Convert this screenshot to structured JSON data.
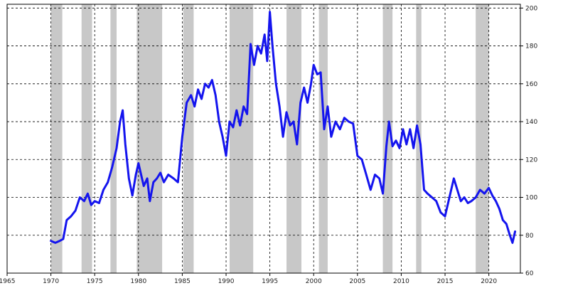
{
  "chart_data": {
    "type": "line",
    "xlim": [
      1965,
      2023.6
    ],
    "ylim": [
      60,
      202
    ],
    "x_ticks": [
      1965,
      1970,
      1975,
      1980,
      1985,
      1990,
      1995,
      2000,
      2005,
      2010,
      2015,
      2020
    ],
    "x_tick_labels": [
      "1965",
      "1970",
      "1975",
      "1980",
      "1985",
      "1990",
      "1995",
      "2000",
      "2005",
      "2010",
      "2015",
      "2020"
    ],
    "y_ticks": [
      60,
      80,
      100,
      120,
      140,
      160,
      180,
      200
    ],
    "y_tick_labels": [
      "60",
      "80",
      "100",
      "120",
      "140",
      "160",
      "180",
      "200"
    ],
    "y_axis_side": "right",
    "grid": true,
    "grid_style": "dashed",
    "line_color": "#1414ee",
    "shade_color": "#c8c8c8",
    "shaded_periods": [
      [
        1970.0,
        1971.3
      ],
      [
        1973.5,
        1974.7
      ],
      [
        1976.8,
        1977.5
      ],
      [
        1979.8,
        1982.7
      ],
      [
        1985.1,
        1986.3
      ],
      [
        1990.4,
        1993.1
      ],
      [
        1996.9,
        1998.6
      ],
      [
        2000.6,
        2001.6
      ],
      [
        2007.9,
        2009.0
      ],
      [
        2011.7,
        2012.3
      ],
      [
        2018.5,
        2020.0
      ]
    ],
    "series": [
      {
        "x": [
          1970.0,
          1970.5,
          1971.0,
          1971.4,
          1971.8,
          1972.3,
          1972.8,
          1973.3,
          1973.8,
          1974.2,
          1974.6,
          1975.0,
          1975.5,
          1976.0,
          1976.5,
          1977.0,
          1977.5,
          1977.9,
          1978.2,
          1978.5,
          1978.9,
          1979.3,
          1979.7,
          1980.0,
          1980.3,
          1980.6,
          1981.0,
          1981.3,
          1981.7,
          1982.1,
          1982.5,
          1982.9,
          1983.4,
          1984.0,
          1984.5,
          1985.0,
          1985.5,
          1986.0,
          1986.4,
          1986.8,
          1987.2,
          1987.6,
          1988.0,
          1988.4,
          1988.8,
          1989.2,
          1989.6,
          1990.0,
          1990.4,
          1990.8,
          1991.2,
          1991.6,
          1992.0,
          1992.4,
          1992.8,
          1993.2,
          1993.6,
          1994.0,
          1994.4,
          1994.7,
          1995.0,
          1995.3,
          1995.7,
          1996.1,
          1996.5,
          1996.9,
          1997.3,
          1997.7,
          1998.1,
          1998.5,
          1998.9,
          1999.3,
          1999.7,
          2000.0,
          2000.4,
          2000.8,
          2001.2,
          2001.6,
          2002.0,
          2002.5,
          2003.0,
          2003.5,
          2004.0,
          2004.5,
          2005.0,
          2005.5,
          2006.0,
          2006.5,
          2007.0,
          2007.5,
          2007.9,
          2008.3,
          2008.6,
          2009.0,
          2009.4,
          2009.8,
          2010.2,
          2010.6,
          2011.0,
          2011.4,
          2011.8,
          2012.2,
          2012.6,
          2013.0,
          2013.5,
          2014.0,
          2014.5,
          2015.0,
          2015.5,
          2016.0,
          2016.4,
          2016.8,
          2017.2,
          2017.6,
          2018.0,
          2018.5,
          2019.0,
          2019.5,
          2020.0,
          2020.4,
          2020.8,
          2021.2,
          2021.6,
          2022.0,
          2022.4,
          2022.7,
          2023.0
        ],
        "y": [
          77,
          76,
          77,
          78,
          88,
          90,
          93,
          100,
          98,
          102,
          96,
          98,
          97,
          104,
          108,
          116,
          126,
          140,
          146,
          128,
          110,
          101,
          112,
          118,
          112,
          106,
          110,
          98,
          108,
          110,
          113,
          108,
          112,
          110,
          108,
          132,
          150,
          154,
          148,
          157,
          152,
          160,
          158,
          162,
          154,
          140,
          132,
          122,
          140,
          137,
          146,
          138,
          148,
          144,
          181,
          170,
          180,
          176,
          186,
          172,
          198,
          180,
          160,
          148,
          132,
          145,
          138,
          140,
          128,
          150,
          158,
          150,
          160,
          170,
          165,
          166,
          136,
          148,
          132,
          140,
          136,
          142,
          140,
          139,
          122,
          120,
          112,
          104,
          112,
          110,
          102,
          127,
          140,
          127,
          130,
          126,
          136,
          128,
          136,
          126,
          138,
          128,
          104,
          102,
          100,
          98,
          92,
          90,
          100,
          110,
          104,
          98,
          100,
          97,
          98,
          100,
          104,
          102,
          105,
          101,
          98,
          94,
          88,
          86,
          80,
          76,
          82
        ]
      }
    ]
  }
}
